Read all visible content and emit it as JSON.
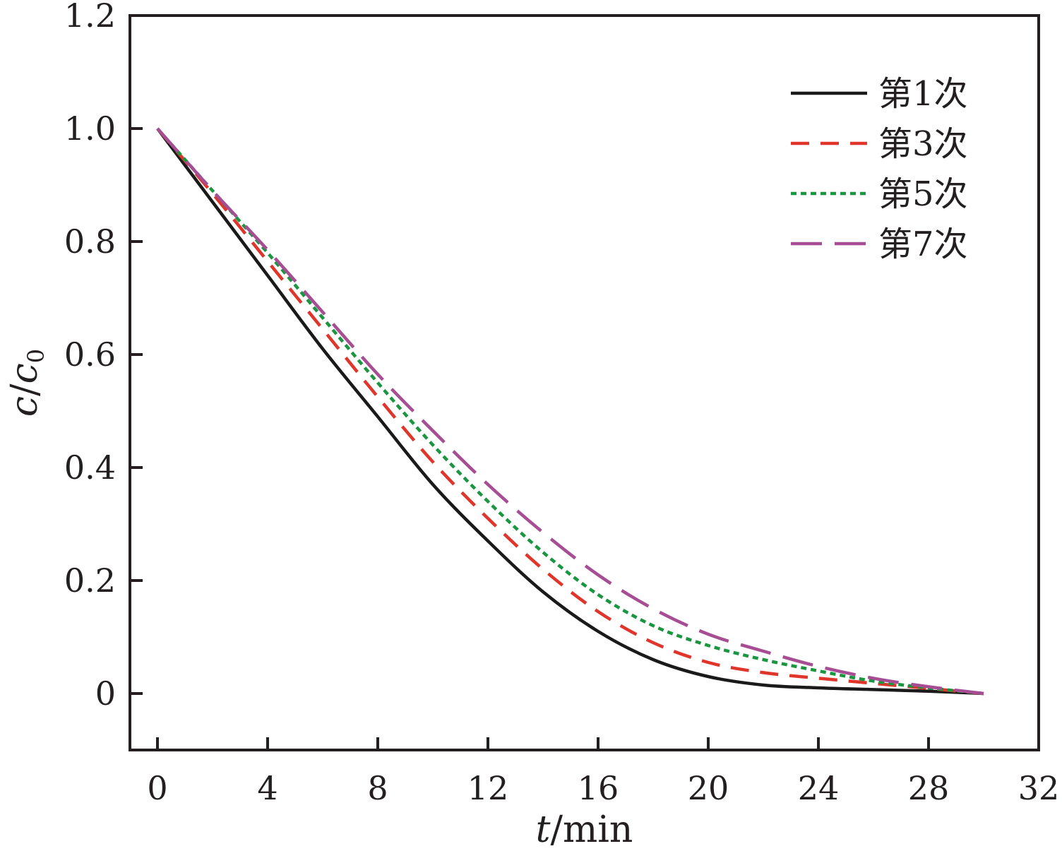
{
  "chart_data": {
    "type": "line",
    "title": "",
    "xlabel": {
      "var": "t",
      "unit": "/min"
    },
    "ylabel": {
      "var": "c",
      "sep": "/",
      "var2": "c",
      "sub": "0"
    },
    "xlim": [
      -1,
      32
    ],
    "ylim": [
      -0.1,
      1.2
    ],
    "xticks": [
      0,
      4,
      8,
      12,
      16,
      20,
      24,
      28,
      32
    ],
    "xtick_labels": [
      "0",
      "4",
      "8",
      "12",
      "16",
      "20",
      "24",
      "28",
      "32"
    ],
    "yticks": [
      0,
      0.2,
      0.4,
      0.6,
      0.8,
      1.0,
      1.2
    ],
    "ytick_labels": [
      "0",
      "0.2",
      "0.4",
      "0.6",
      "0.8",
      "1.0",
      "1.2"
    ],
    "grid": false,
    "legend_position": "top-right",
    "series": [
      {
        "name": "第1次",
        "color": "#1a1a1a",
        "dash": "solid",
        "x": [
          0,
          2,
          4,
          6,
          8,
          10,
          12,
          14,
          16,
          18,
          20,
          22,
          24,
          26,
          28,
          30
        ],
        "y": [
          1.0,
          0.87,
          0.74,
          0.61,
          0.49,
          0.37,
          0.27,
          0.18,
          0.11,
          0.06,
          0.03,
          0.015,
          0.01,
          0.007,
          0.004,
          0.0
        ]
      },
      {
        "name": "第3次",
        "color": "#e0352b",
        "dash": "dashed",
        "x": [
          0,
          2,
          4,
          6,
          8,
          10,
          12,
          14,
          16,
          18,
          20,
          22,
          24,
          26,
          28,
          30
        ],
        "y": [
          1.0,
          0.885,
          0.765,
          0.645,
          0.525,
          0.41,
          0.31,
          0.22,
          0.145,
          0.09,
          0.055,
          0.037,
          0.027,
          0.018,
          0.009,
          0.0
        ]
      },
      {
        "name": "第5次",
        "color": "#1a9641",
        "dash": "dotted",
        "x": [
          0,
          2,
          4,
          6,
          8,
          10,
          12,
          14,
          16,
          18,
          20,
          22,
          24,
          26,
          28,
          30
        ],
        "y": [
          1.0,
          0.89,
          0.78,
          0.665,
          0.55,
          0.44,
          0.34,
          0.25,
          0.175,
          0.12,
          0.085,
          0.06,
          0.04,
          0.022,
          0.01,
          0.0
        ]
      },
      {
        "name": "第7次",
        "color": "#a64d94",
        "dash": "longdash",
        "x": [
          0,
          2,
          4,
          6,
          8,
          10,
          12,
          14,
          16,
          18,
          20,
          22,
          24,
          26,
          28,
          30
        ],
        "y": [
          1.0,
          0.89,
          0.785,
          0.675,
          0.565,
          0.465,
          0.37,
          0.285,
          0.21,
          0.15,
          0.105,
          0.075,
          0.048,
          0.027,
          0.012,
          0.0
        ]
      }
    ]
  }
}
